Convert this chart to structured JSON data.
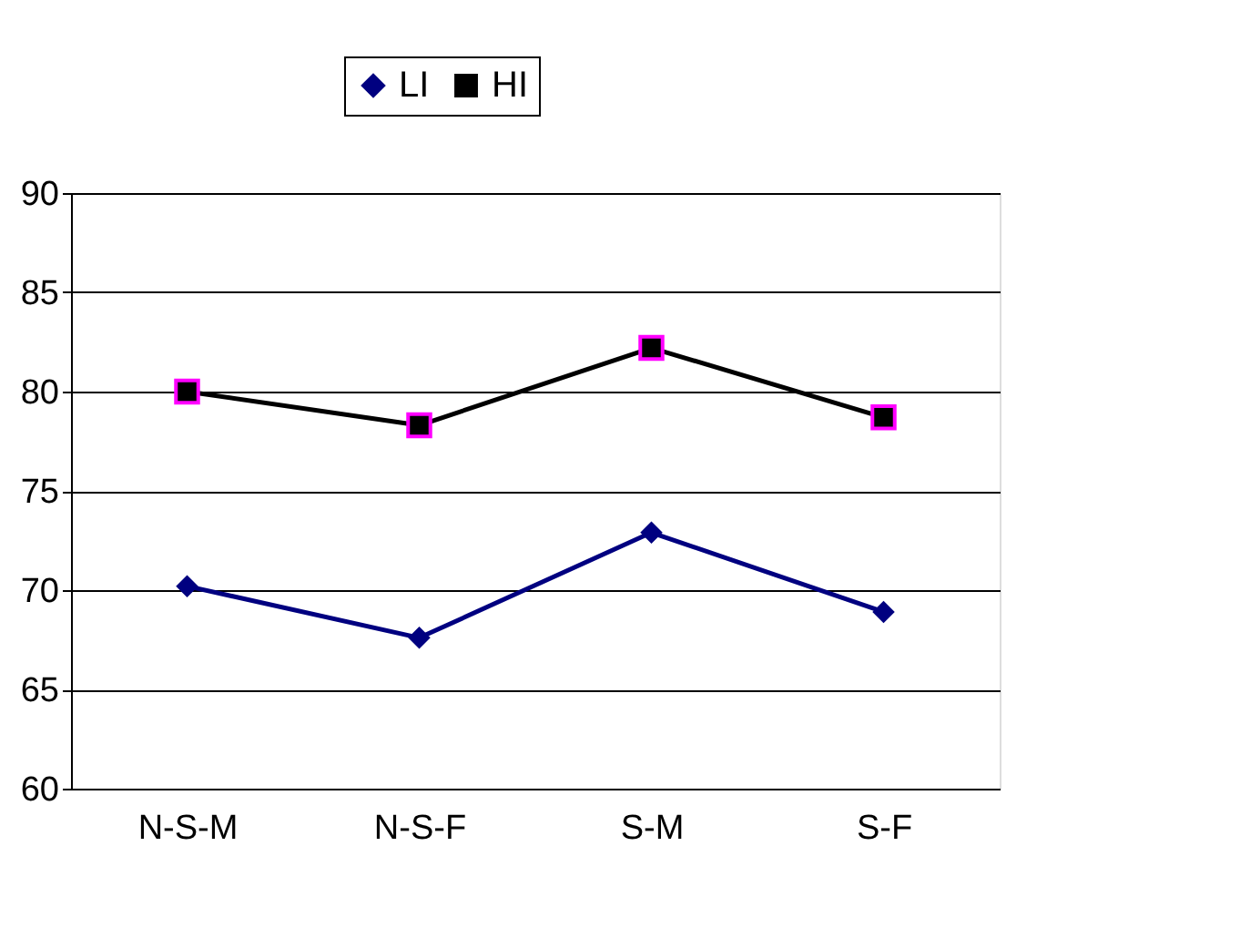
{
  "chart_data": {
    "type": "line",
    "categories": [
      "N-S-M",
      "N-S-F",
      "S-M",
      "S-F"
    ],
    "series": [
      {
        "name": "LI",
        "color": "#000080",
        "marker": "diamond",
        "values": [
          70.2,
          67.6,
          72.9,
          68.9
        ]
      },
      {
        "name": "HI",
        "color": "#000000",
        "marker": "square",
        "values": [
          80.0,
          78.3,
          82.2,
          78.7
        ]
      }
    ],
    "ylim": [
      60,
      90
    ],
    "yticks": [
      60,
      65,
      70,
      75,
      80,
      85,
      90
    ],
    "grid": "y",
    "legend": "top",
    "line_style": "solid"
  }
}
